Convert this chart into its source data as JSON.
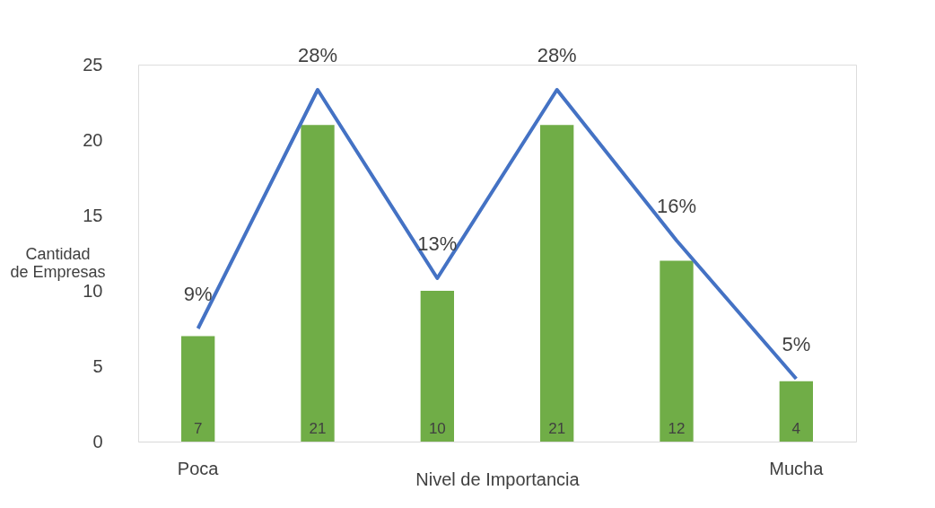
{
  "chart_data": {
    "type": "bar",
    "xlabel": "Nivel de Importancia",
    "ylabel": "Cantidad de Empresas",
    "categories": [
      "Poca",
      null,
      null,
      null,
      null,
      "Mucha"
    ],
    "series": [
      {
        "color": "#70ad47",
        "values": [
          7,
          21,
          10,
          21,
          12,
          4
        ],
        "value_labels": [
          "7",
          "21",
          "10",
          "21",
          "12",
          "4"
        ]
      },
      {
        "type": "line",
        "axis": "y2",
        "color": "#4472c4",
        "values": [
          9,
          28,
          13,
          28,
          16,
          5
        ],
        "value_labels": [
          "9%",
          "28%",
          "13%",
          "28%",
          "16%",
          "5%"
        ]
      }
    ],
    "ylim": [
      0,
      25
    ],
    "yticks": [
      0,
      5,
      10,
      15,
      20,
      25
    ],
    "y2lim": [
      0,
      30
    ],
    "grid": false,
    "marker": "none",
    "line_style": "solid"
  }
}
